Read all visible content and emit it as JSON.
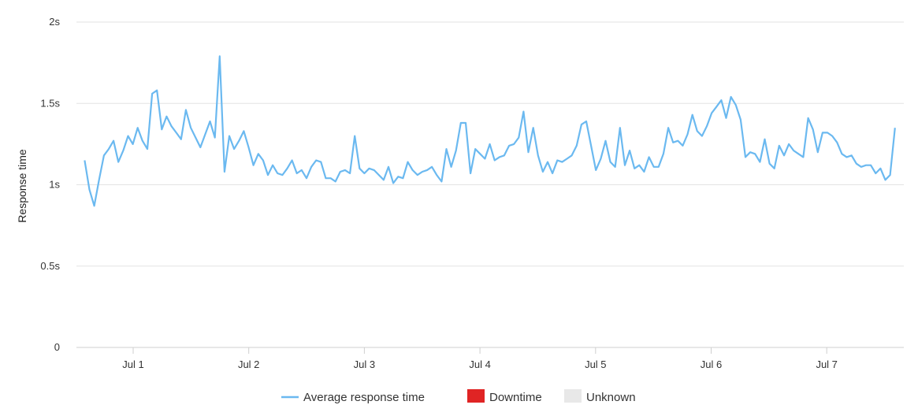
{
  "chart_data": {
    "type": "line",
    "ylabel": "Response time",
    "ylim": [
      0,
      2
    ],
    "y_ticks": [
      {
        "value": 0,
        "label": "0"
      },
      {
        "value": 0.5,
        "label": "0.5s"
      },
      {
        "value": 1,
        "label": "1s"
      },
      {
        "value": 1.5,
        "label": "1.5s"
      },
      {
        "value": 2,
        "label": "2s"
      }
    ],
    "x_ticks": [
      "Jul 1",
      "Jul 2",
      "Jul 3",
      "Jul 4",
      "Jul 5",
      "Jul 6",
      "Jul 7"
    ],
    "grid": true,
    "legend": {
      "placement": "bottom-center",
      "items": [
        {
          "label": "Average response time",
          "color": "#6bb9f0",
          "kind": "line"
        },
        {
          "label": "Downtime",
          "color": "#e02424",
          "kind": "box"
        },
        {
          "label": "Unknown",
          "color": "#e8e8e8",
          "kind": "box"
        }
      ]
    },
    "series": [
      {
        "name": "Average response time",
        "color": "#6bb9f0",
        "x_start_day": -0.42,
        "x_end_day": 6.59,
        "values": [
          1.15,
          0.97,
          0.87,
          1.03,
          1.18,
          1.22,
          1.27,
          1.14,
          1.21,
          1.3,
          1.25,
          1.35,
          1.27,
          1.22,
          1.56,
          1.58,
          1.34,
          1.42,
          1.36,
          1.32,
          1.28,
          1.46,
          1.35,
          1.29,
          1.23,
          1.31,
          1.39,
          1.29,
          1.79,
          1.08,
          1.3,
          1.22,
          1.27,
          1.33,
          1.23,
          1.12,
          1.19,
          1.15,
          1.06,
          1.12,
          1.07,
          1.06,
          1.1,
          1.15,
          1.07,
          1.09,
          1.04,
          1.11,
          1.15,
          1.14,
          1.04,
          1.04,
          1.02,
          1.08,
          1.09,
          1.07,
          1.3,
          1.1,
          1.07,
          1.1,
          1.09,
          1.06,
          1.03,
          1.11,
          1.01,
          1.05,
          1.04,
          1.14,
          1.09,
          1.06,
          1.08,
          1.09,
          1.11,
          1.06,
          1.02,
          1.22,
          1.11,
          1.21,
          1.38,
          1.38,
          1.07,
          1.22,
          1.19,
          1.16,
          1.25,
          1.15,
          1.17,
          1.18,
          1.24,
          1.25,
          1.29,
          1.45,
          1.2,
          1.35,
          1.18,
          1.08,
          1.14,
          1.07,
          1.15,
          1.14,
          1.16,
          1.18,
          1.24,
          1.37,
          1.39,
          1.24,
          1.09,
          1.16,
          1.27,
          1.14,
          1.11,
          1.35,
          1.12,
          1.21,
          1.1,
          1.12,
          1.08,
          1.17,
          1.11,
          1.11,
          1.19,
          1.35,
          1.26,
          1.27,
          1.24,
          1.31,
          1.43,
          1.33,
          1.3,
          1.36,
          1.44,
          1.48,
          1.52,
          1.41,
          1.54,
          1.49,
          1.4,
          1.17,
          1.2,
          1.19,
          1.14,
          1.28,
          1.13,
          1.1,
          1.24,
          1.18,
          1.25,
          1.21,
          1.19,
          1.17,
          1.41,
          1.34,
          1.2,
          1.32,
          1.32,
          1.3,
          1.26,
          1.19,
          1.17,
          1.18,
          1.13,
          1.11,
          1.12,
          1.12,
          1.07,
          1.1,
          1.03,
          1.06,
          1.35
        ]
      }
    ]
  }
}
